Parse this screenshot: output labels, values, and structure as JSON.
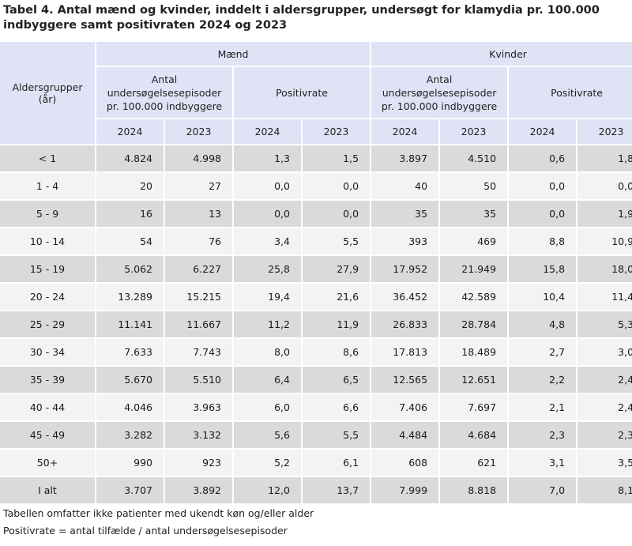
{
  "title": "Tabel 4. Antal mænd og kvinder, inddelt i aldersgrupper, undersøgt for klamydia pr. 100.000 indbyggere samt positivraten 2024 og 2023",
  "header": {
    "age_group": "Aldersgrupper (år)",
    "men": "Mænd",
    "women": "Kvinder",
    "count_label": "Antal undersøgelsesepisoder pr. 100.000 indbyggere",
    "rate_label": "Positivrate",
    "years": [
      "2024",
      "2023",
      "2024",
      "2023",
      "2024",
      "2023",
      "2024",
      "2023"
    ]
  },
  "rows": [
    [
      "< 1",
      "4.824",
      "4.998",
      "1,3",
      "1,5",
      "3.897",
      "4.510",
      "0,6",
      "1,8"
    ],
    [
      "1 - 4",
      "20",
      "27",
      "0,0",
      "0,0",
      "40",
      "50",
      "0,0",
      "0,0"
    ],
    [
      "5 - 9",
      "16",
      "13",
      "0,0",
      "0,0",
      "35",
      "35",
      "0,0",
      "1,9"
    ],
    [
      "10 - 14",
      "54",
      "76",
      "3,4",
      "5,5",
      "393",
      "469",
      "8,8",
      "10,9"
    ],
    [
      "15 - 19",
      "5.062",
      "6.227",
      "25,8",
      "27,9",
      "17.952",
      "21.949",
      "15,8",
      "18,0"
    ],
    [
      "20 - 24",
      "13.289",
      "15.215",
      "19,4",
      "21,6",
      "36.452",
      "42.589",
      "10,4",
      "11,4"
    ],
    [
      "25 - 29",
      "11.141",
      "11.667",
      "11,2",
      "11,9",
      "26.833",
      "28.784",
      "4,8",
      "5,3"
    ],
    [
      "30 - 34",
      "7.633",
      "7.743",
      "8,0",
      "8,6",
      "17.813",
      "18.489",
      "2,7",
      "3,0"
    ],
    [
      "35 - 39",
      "5.670",
      "5.510",
      "6,4",
      "6,5",
      "12.565",
      "12.651",
      "2,2",
      "2,4"
    ],
    [
      "40 - 44",
      "4.046",
      "3.963",
      "6,0",
      "6,6",
      "7.406",
      "7.697",
      "2,1",
      "2,4"
    ],
    [
      "45 - 49",
      "3.282",
      "3.132",
      "5,6",
      "5,5",
      "4.484",
      "4.684",
      "2,3",
      "2,3"
    ],
    [
      "50+",
      "990",
      "923",
      "5,2",
      "6,1",
      "608",
      "621",
      "3,1",
      "3,5"
    ],
    [
      "I alt",
      "3.707",
      "3.892",
      "12,0",
      "13,7",
      "7.999",
      "8.818",
      "7,0",
      "8,1"
    ]
  ],
  "footnotes": [
    "Tabellen omfatter ikke patienter med ukendt køn og/eller alder",
    "Positivrate = antal tilfælde / antal undersøgelsesepisoder"
  ]
}
